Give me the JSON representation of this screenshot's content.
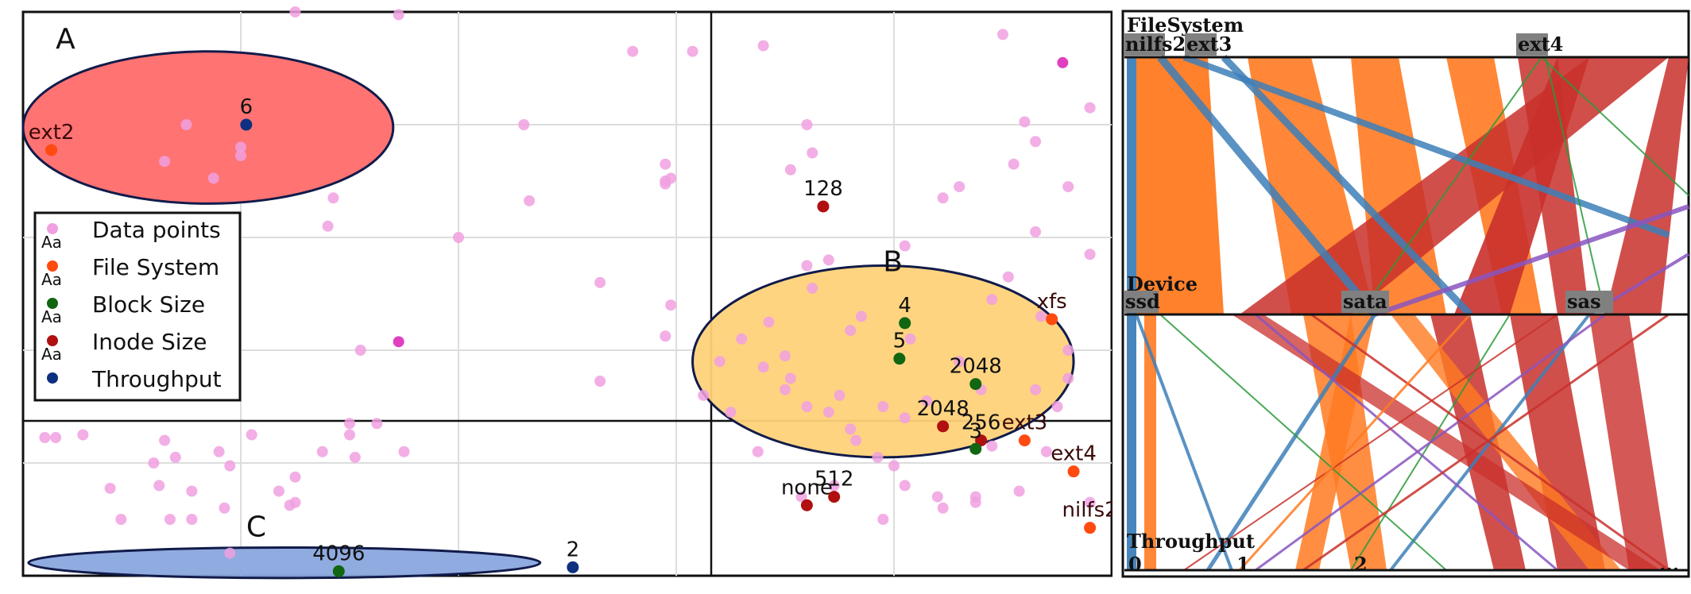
{
  "chart_data": [
    {
      "type": "scatter",
      "panel": "projection-scatter",
      "legend": [
        {
          "label": "Data points",
          "symbol": "Aa",
          "color": "#f0a0e0"
        },
        {
          "label": "File System",
          "symbol": "Aa",
          "color": "#ff4a10"
        },
        {
          "label": "Block Size",
          "symbol": "Aa",
          "color": "#116611"
        },
        {
          "label": "Inode Size",
          "symbol": "Aa",
          "color": "#b01010"
        },
        {
          "label": "Throughput",
          "symbol": "",
          "color": "#0d3080"
        }
      ],
      "legend_position": "middle-left",
      "grid": true,
      "xlim": [
        0,
        100
      ],
      "ylim": [
        0,
        100
      ],
      "clusters": [
        {
          "label": "A",
          "color": "#ff6b6b",
          "cx": 17,
          "cy": 79.5,
          "rx": 17,
          "ry": 13.5
        },
        {
          "label": "B",
          "color": "#ffd27a",
          "cx": 79,
          "cy": 38,
          "rx": 17.5,
          "ry": 17
        },
        {
          "label": "C",
          "color": "#8aa6dd",
          "cx": 24,
          "cy": 2.3,
          "rx": 23.5,
          "ry": 2.7
        }
      ],
      "data_points": [
        [
          25,
          100
        ],
        [
          34.5,
          99.5
        ],
        [
          46.5,
          66.5
        ],
        [
          56,
          93
        ],
        [
          53,
          34.5
        ],
        [
          59.5,
          48
        ],
        [
          59,
          70
        ],
        [
          59,
          73
        ],
        [
          59,
          69.5
        ],
        [
          59.5,
          70.5
        ],
        [
          59,
          42.5
        ],
        [
          28.5,
          67
        ],
        [
          28,
          62
        ],
        [
          20,
          76
        ],
        [
          15,
          80
        ],
        [
          13,
          73.5
        ],
        [
          20,
          74.5
        ],
        [
          17.5,
          70.5
        ],
        [
          35,
          22
        ],
        [
          27.5,
          22
        ],
        [
          30,
          27
        ],
        [
          30.5,
          21
        ],
        [
          32.5,
          27
        ],
        [
          19,
          4
        ],
        [
          13,
          24
        ],
        [
          18,
          22
        ],
        [
          3,
          24.5
        ],
        [
          21,
          25
        ],
        [
          5.5,
          25
        ],
        [
          2,
          24.5
        ],
        [
          12,
          20
        ],
        [
          14,
          21
        ],
        [
          12.5,
          16
        ],
        [
          19,
          19.5
        ],
        [
          25,
          17.5
        ],
        [
          23.5,
          15
        ],
        [
          25,
          13
        ],
        [
          24.5,
          12.5
        ],
        [
          18.5,
          12
        ],
        [
          13.5,
          10
        ],
        [
          15.5,
          15
        ],
        [
          15.5,
          10
        ],
        [
          9,
          10
        ],
        [
          8,
          15.5
        ],
        [
          30,
          25
        ],
        [
          31,
          40
        ],
        [
          40,
          60
        ],
        [
          46,
          80
        ],
        [
          53,
          52
        ],
        [
          61.5,
          93
        ],
        [
          72,
          80
        ],
        [
          68,
          94
        ],
        [
          70.5,
          72
        ],
        [
          72.5,
          75
        ],
        [
          72.5,
          51
        ],
        [
          74,
          56
        ],
        [
          76,
          43.5
        ],
        [
          77,
          46
        ],
        [
          81,
          58.5
        ],
        [
          81.5,
          42
        ],
        [
          84.5,
          67
        ],
        [
          86,
          69
        ],
        [
          90.5,
          53
        ],
        [
          92,
          80.5
        ],
        [
          90,
          96
        ],
        [
          93,
          77
        ],
        [
          93,
          61
        ],
        [
          96,
          69
        ],
        [
          98,
          83
        ],
        [
          98,
          57
        ],
        [
          91,
          73
        ],
        [
          96,
          40
        ],
        [
          88,
          33
        ],
        [
          89,
          23
        ],
        [
          87.5,
          14
        ],
        [
          91.5,
          15
        ],
        [
          94,
          22
        ],
        [
          87.5,
          13
        ],
        [
          84.5,
          12
        ],
        [
          79,
          10
        ],
        [
          74.5,
          16
        ],
        [
          71.5,
          14
        ],
        [
          67.5,
          22
        ],
        [
          65,
          29
        ],
        [
          64,
          38
        ],
        [
          62.5,
          32
        ],
        [
          66,
          42
        ],
        [
          68.5,
          45
        ],
        [
          70,
          39
        ],
        [
          70.5,
          35
        ],
        [
          75,
          32
        ],
        [
          76.5,
          24
        ],
        [
          78.5,
          21
        ],
        [
          80,
          19.5
        ],
        [
          81,
          16
        ],
        [
          84,
          14
        ],
        [
          79,
          30
        ],
        [
          81,
          28
        ],
        [
          83,
          31
        ],
        [
          76,
          26
        ],
        [
          68,
          37
        ],
        [
          70,
          33
        ],
        [
          72,
          30
        ],
        [
          74,
          29
        ],
        [
          89,
          49
        ],
        [
          93.5,
          46
        ],
        [
          95,
          30
        ],
        [
          96,
          35
        ],
        [
          93,
          33
        ],
        [
          98,
          13
        ],
        [
          72,
          55
        ],
        [
          86,
          38
        ]
      ],
      "highlight_points": [
        [
          34.5,
          41.5
        ],
        [
          95.5,
          91
        ]
      ],
      "labeled_points": [
        {
          "label": "ext2",
          "kind": "File System",
          "x": 2.6,
          "y": 75.5
        },
        {
          "label": "6",
          "kind": "Throughput",
          "x": 20.5,
          "y": 80.0
        },
        {
          "label": "128",
          "kind": "Inode Size",
          "x": 73.5,
          "y": 65.5
        },
        {
          "label": "xfs",
          "kind": "File System",
          "x": 94.5,
          "y": 45.5
        },
        {
          "label": "4",
          "kind": "Block Size",
          "x": 81.0,
          "y": 44.8
        },
        {
          "label": "5",
          "kind": "Block Size",
          "x": 80.5,
          "y": 38.5
        },
        {
          "label": "2048",
          "kind": "Block Size",
          "x": 87.5,
          "y": 34.0
        },
        {
          "label": "2048",
          "kind": "Inode Size",
          "x": 84.5,
          "y": 26.5
        },
        {
          "label": "256",
          "kind": "Inode Size",
          "x": 88.0,
          "y": 24.0
        },
        {
          "label": "3",
          "kind": "Block Size",
          "x": 87.5,
          "y": 22.5
        },
        {
          "label": "ext3",
          "kind": "File System",
          "x": 92.0,
          "y": 24.0
        },
        {
          "label": "ext4",
          "kind": "File System",
          "x": 96.5,
          "y": 18.5
        },
        {
          "label": "none",
          "kind": "Inode Size",
          "x": 72.0,
          "y": 12.5
        },
        {
          "label": "512",
          "kind": "Inode Size",
          "x": 74.5,
          "y": 14.0
        },
        {
          "label": "nilfs2",
          "kind": "File System",
          "x": 98.0,
          "y": 8.5
        },
        {
          "label": "4096",
          "kind": "Block Size",
          "x": 29.0,
          "y": 0.8
        },
        {
          "label": "2",
          "kind": "Throughput",
          "x": 50.5,
          "y": 1.5
        }
      ]
    },
    {
      "type": "parallel-sets",
      "panel": "parallel-sets",
      "dimensions": [
        {
          "name": "FileSystem",
          "categories": [
            "nilfs2",
            "ext3",
            "ext4"
          ]
        },
        {
          "name": "Device",
          "categories": [
            "ssd",
            "sata",
            "sas"
          ]
        },
        {
          "name": "Throughput",
          "categories": [
            "0",
            "1",
            "2",
            "..."
          ]
        }
      ],
      "colors": {
        "blue": "#3d7fb8",
        "orange": "#ff7a21",
        "red": "#c9302c",
        "green": "#2a9a3a",
        "purple": "#8a55c0"
      }
    }
  ]
}
